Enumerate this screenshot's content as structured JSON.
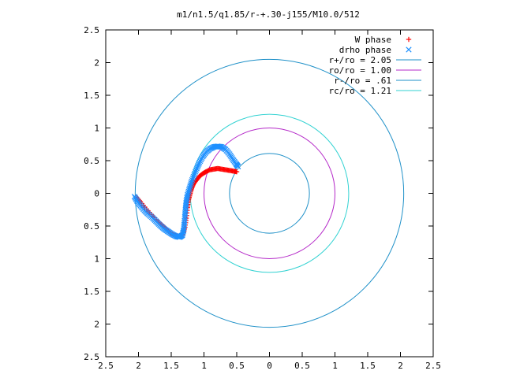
{
  "chart_data": {
    "type": "scatter",
    "title": "m1/n1.5/q1.85/r-+.30-j155/M10.0/512",
    "xlim": [
      -2.5,
      2.5
    ],
    "ylim": [
      -2.5,
      2.5
    ],
    "x_tick_labels": [
      "2.5",
      "2",
      "1.5",
      "1",
      "0.5",
      "0",
      "0.5",
      "1",
      "1.5",
      "2",
      "2.5"
    ],
    "y_tick_labels": [
      "2.5",
      "2",
      "1.5",
      "1",
      "0.5",
      "0",
      "0.5",
      "1",
      "1.5",
      "2",
      "2.5"
    ],
    "legend_position": "top-right",
    "series": [
      {
        "name": "W phase",
        "kind": "points",
        "marker": "+",
        "color": "#ff0000",
        "points": [
          [
            -2.03,
            -0.06
          ],
          [
            -1.97,
            -0.13
          ],
          [
            -1.88,
            -0.24
          ],
          [
            -1.78,
            -0.35
          ],
          [
            -1.68,
            -0.45
          ],
          [
            -1.6,
            -0.52
          ],
          [
            -1.52,
            -0.6
          ],
          [
            -1.45,
            -0.64
          ],
          [
            -1.38,
            -0.66
          ],
          [
            -1.32,
            -0.63
          ],
          [
            -1.29,
            -0.52
          ],
          [
            -1.27,
            -0.38
          ],
          [
            -1.25,
            -0.22
          ],
          [
            -1.24,
            -0.12
          ],
          [
            -1.22,
            -0.04
          ],
          [
            -1.2,
            0.04
          ],
          [
            -1.18,
            0.1
          ],
          [
            -1.15,
            0.16
          ],
          [
            -1.11,
            0.21
          ],
          [
            -1.07,
            0.26
          ],
          [
            -1.02,
            0.3
          ],
          [
            -0.97,
            0.33
          ],
          [
            -0.91,
            0.36
          ],
          [
            -0.85,
            0.37
          ],
          [
            -0.79,
            0.38
          ],
          [
            -0.73,
            0.37
          ],
          [
            -0.67,
            0.36
          ],
          [
            -0.61,
            0.35
          ],
          [
            -0.55,
            0.34
          ],
          [
            -0.5,
            0.33
          ]
        ]
      },
      {
        "name": "drho phase",
        "kind": "points",
        "marker": "x",
        "color": "#1e90ff",
        "points": [
          [
            -2.06,
            -0.05
          ],
          [
            -2.02,
            -0.12
          ],
          [
            -1.97,
            -0.19
          ],
          [
            -1.91,
            -0.26
          ],
          [
            -1.85,
            -0.32
          ],
          [
            -1.78,
            -0.38
          ],
          [
            -1.72,
            -0.44
          ],
          [
            -1.66,
            -0.5
          ],
          [
            -1.6,
            -0.55
          ],
          [
            -1.54,
            -0.59
          ],
          [
            -1.48,
            -0.63
          ],
          [
            -1.42,
            -0.66
          ],
          [
            -1.37,
            -0.67
          ],
          [
            -1.33,
            -0.64
          ],
          [
            -1.31,
            -0.56
          ],
          [
            -1.3,
            -0.45
          ],
          [
            -1.29,
            -0.33
          ],
          [
            -1.28,
            -0.22
          ],
          [
            -1.27,
            -0.12
          ],
          [
            -1.25,
            -0.02
          ],
          [
            -1.22,
            0.08
          ],
          [
            -1.19,
            0.18
          ],
          [
            -1.15,
            0.28
          ],
          [
            -1.11,
            0.38
          ],
          [
            -1.07,
            0.47
          ],
          [
            -1.02,
            0.56
          ],
          [
            -0.97,
            0.63
          ],
          [
            -0.91,
            0.68
          ],
          [
            -0.85,
            0.71
          ],
          [
            -0.79,
            0.72
          ],
          [
            -0.73,
            0.71
          ],
          [
            -0.67,
            0.67
          ],
          [
            -0.61,
            0.6
          ],
          [
            -0.56,
            0.52
          ],
          [
            -0.51,
            0.45
          ],
          [
            -0.48,
            0.41
          ]
        ]
      },
      {
        "name": "r+/ro = 2.05",
        "kind": "circle",
        "radius": 2.05,
        "color": "#1e90c8"
      },
      {
        "name": "ro/ro = 1.00",
        "kind": "circle",
        "radius": 1.0,
        "color": "#b428c8"
      },
      {
        "name": "r-/ro = .61",
        "kind": "circle",
        "radius": 0.61,
        "color": "#1e90c8"
      },
      {
        "name": "rc/ro = 1.21",
        "kind": "circle",
        "radius": 1.21,
        "color": "#32d2d2"
      }
    ]
  }
}
